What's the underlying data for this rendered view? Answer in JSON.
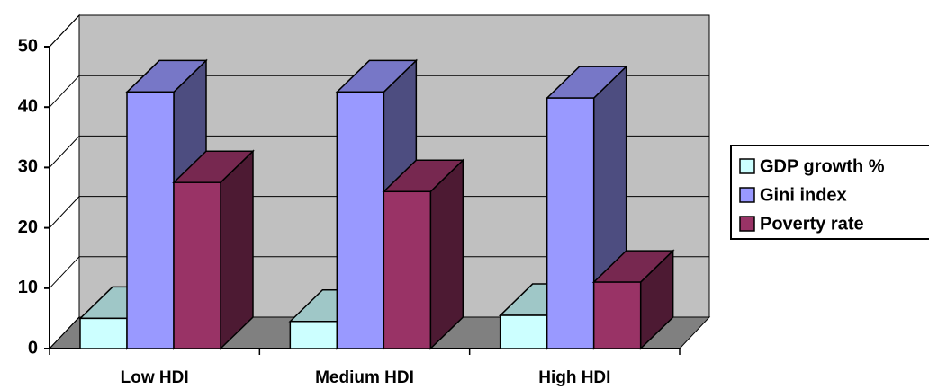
{
  "chart_data": {
    "type": "bar3d",
    "categories": [
      "Low HDI",
      "Medium HDI",
      "High HDI"
    ],
    "series": [
      {
        "name": "GDP growth %",
        "color": "#ccffff",
        "values": [
          5,
          4.5,
          5.5
        ]
      },
      {
        "name": "Gini index",
        "color": "#9999ff",
        "values": [
          42.5,
          42.5,
          41.5
        ]
      },
      {
        "name": "Poverty rate",
        "color": "#993366",
        "values": [
          27.5,
          26,
          11
        ]
      }
    ],
    "ylim": [
      0,
      50
    ],
    "yticks": [
      0,
      10,
      20,
      30,
      40,
      50
    ],
    "grid": true,
    "legend": "right"
  }
}
